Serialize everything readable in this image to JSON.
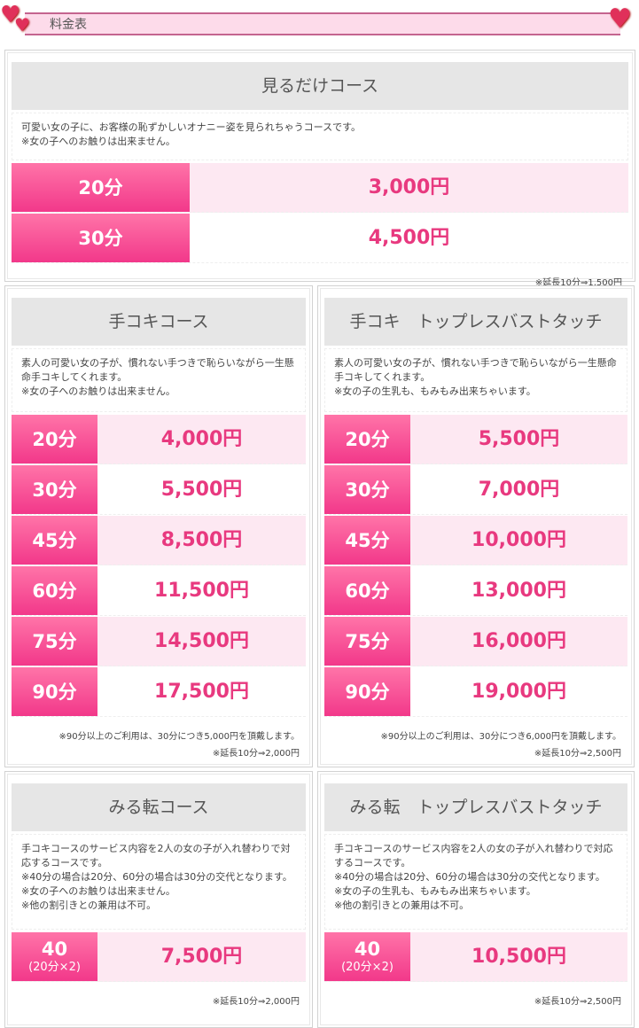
{
  "header": {
    "title": "料金表"
  },
  "colors": {
    "accent": "#f2388a",
    "row_alt": "#fde8f2",
    "price": "#e8397f"
  },
  "courses": [
    {
      "title": "見るだけコース",
      "description": "可愛い女の子に、お客様の恥ずかしいオナニー姿を見られちゃうコースです。\n※女の子へのお触りは出来ません。",
      "rows": [
        {
          "time": "20分",
          "price": "3,000円"
        },
        {
          "time": "30分",
          "price": "4,500円"
        }
      ],
      "notes": [
        "※延長10分⇒1,500円"
      ]
    },
    {
      "title": "手コキコース",
      "description": "素人の可愛い女の子が、慣れない手つきで恥らいながら一生懸命手コキしてくれます。\n※女の子へのお触りは出来ません。",
      "rows": [
        {
          "time": "20分",
          "price": "4,000円"
        },
        {
          "time": "30分",
          "price": "5,500円"
        },
        {
          "time": "45分",
          "price": "8,500円"
        },
        {
          "time": "60分",
          "price": "11,500円"
        },
        {
          "time": "75分",
          "price": "14,500円"
        },
        {
          "time": "90分",
          "price": "17,500円"
        }
      ],
      "notes": [
        "※90分以上のご利用は、30分につき5,000円を頂戴します。",
        "※延長10分⇒2,000円"
      ]
    },
    {
      "title": "手コキ　トップレスバストタッチ",
      "description": "素人の可愛い女の子が、慣れない手つきで恥らいながら一生懸命手コキしてくれます。\n※女の子の生乳も、もみもみ出来ちゃいます。",
      "rows": [
        {
          "time": "20分",
          "price": "5,500円"
        },
        {
          "time": "30分",
          "price": "7,000円"
        },
        {
          "time": "45分",
          "price": "10,000円"
        },
        {
          "time": "60分",
          "price": "13,000円"
        },
        {
          "time": "75分",
          "price": "16,000円"
        },
        {
          "time": "90分",
          "price": "19,000円"
        }
      ],
      "notes": [
        "※90分以上のご利用は、30分につき6,000円を頂戴します。",
        "※延長10分⇒2,500円"
      ]
    },
    {
      "title": "みる転コース",
      "description": "手コキコースのサービス内容を2人の女の子が入れ替わりで対応するコースです。\n※40分の場合は20分、60分の場合は30分の交代となります。\n※女の子へのお触りは出来ません。\n※他の割引きとの兼用は不可。",
      "rows": [
        {
          "time": "40",
          "sub": "(20分×2)",
          "price": "7,500円"
        }
      ],
      "notes": [
        "※延長10分⇒2,000円"
      ]
    },
    {
      "title": "みる転　トップレスバストタッチ",
      "description": "手コキコースのサービス内容を2人の女の子が入れ替わりで対応するコースです。\n※40分の場合は20分、60分の場合は30分の交代となります。\n※女の子の生乳も、もみもみ出来ちゃいます。\n※他の割引きとの兼用は不可。",
      "rows": [
        {
          "time": "40",
          "sub": "(20分×2)",
          "price": "10,500円"
        }
      ],
      "notes": [
        "※延長10分⇒2,500円"
      ]
    }
  ]
}
